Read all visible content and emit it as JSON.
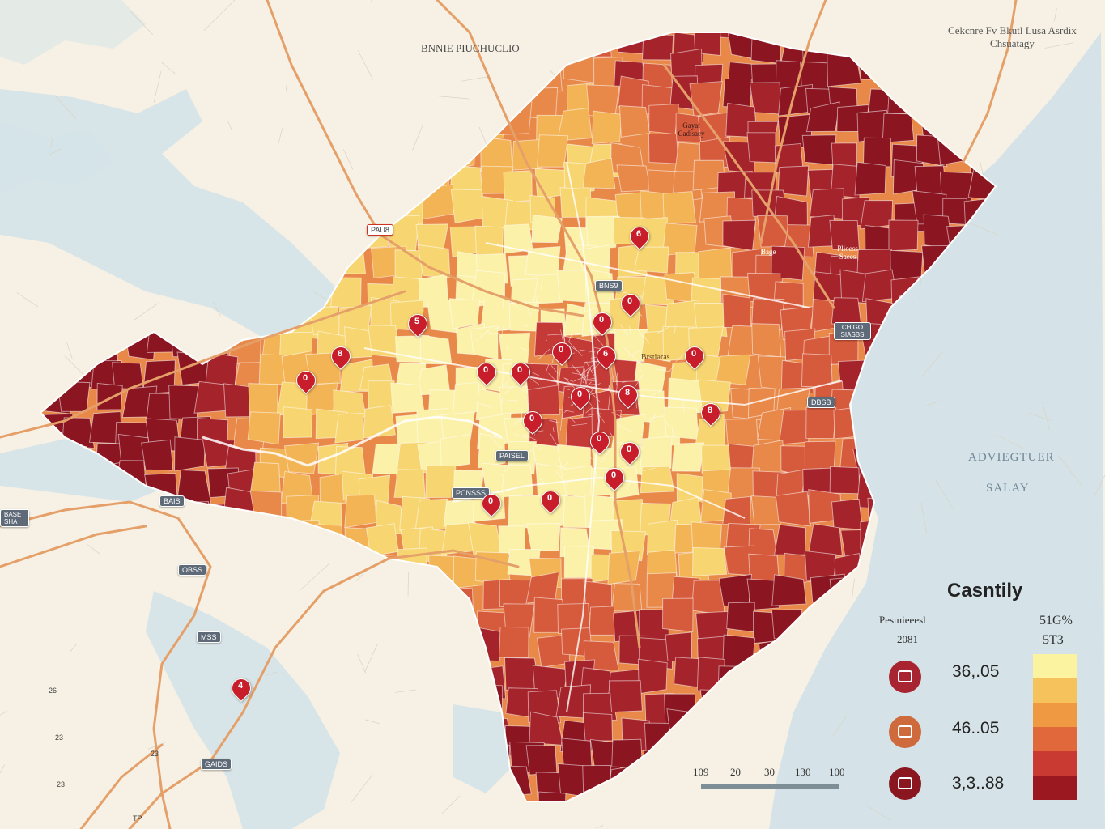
{
  "map": {
    "title_top": "BNNIE PIUCHUCLIO",
    "corner_note": "Cekcnre Fv Bkutl Lusa Asrdix Chsuatagy",
    "sea_label_1": "ADVIEGTUER",
    "sea_label_2": "SALAY",
    "area_labels": [
      "Gayat Cadisaey",
      "Plioess Saees",
      "Bage",
      "Brstiaras"
    ],
    "shields": [
      "PAU8",
      "BNS9",
      "CHIGO SIASBS",
      "DBSB",
      "PAISEL",
      "PCNSSS",
      "BAIS",
      "BASE SHA",
      "OBSS",
      "MSS",
      "GAIDS"
    ],
    "margin_labels": [
      "26",
      "23",
      "23",
      "23",
      "TP"
    ],
    "pins": [
      "6",
      "5",
      "8",
      "0",
      "0",
      "0",
      "6",
      "0",
      "0",
      "0",
      "8",
      "8",
      "0",
      "0",
      "0",
      "0",
      "0",
      "0",
      "0",
      "0",
      "4"
    ]
  },
  "legend": {
    "title": "Casntily",
    "left_header": "Pesmieeesl",
    "left_sub": "2081",
    "right_header": "51G%",
    "right_sub": "5T3",
    "items": [
      {
        "value": "36,.05",
        "color": "#a82431",
        "icon": "bag-icon"
      },
      {
        "value": "46..05",
        "color": "#cf6a3c",
        "icon": "bag-icon"
      },
      {
        "value": "3,3..88",
        "color": "#8a1620",
        "icon": "bag-icon"
      }
    ],
    "ramp": [
      "#fbf3a0",
      "#f6c25b",
      "#ef9a42",
      "#e0683b",
      "#c93a32",
      "#9c1820"
    ]
  },
  "scale": {
    "ticks": [
      "109",
      "20",
      "30",
      "130",
      "100"
    ]
  },
  "colors": {
    "water": "#d5e3e8",
    "land": "#f6f1e4",
    "choropleth": [
      "#fbf1a8",
      "#f7d672",
      "#f3b456",
      "#e8894a",
      "#d65a3c",
      "#c43a37",
      "#a5242b",
      "#8b1622"
    ]
  }
}
